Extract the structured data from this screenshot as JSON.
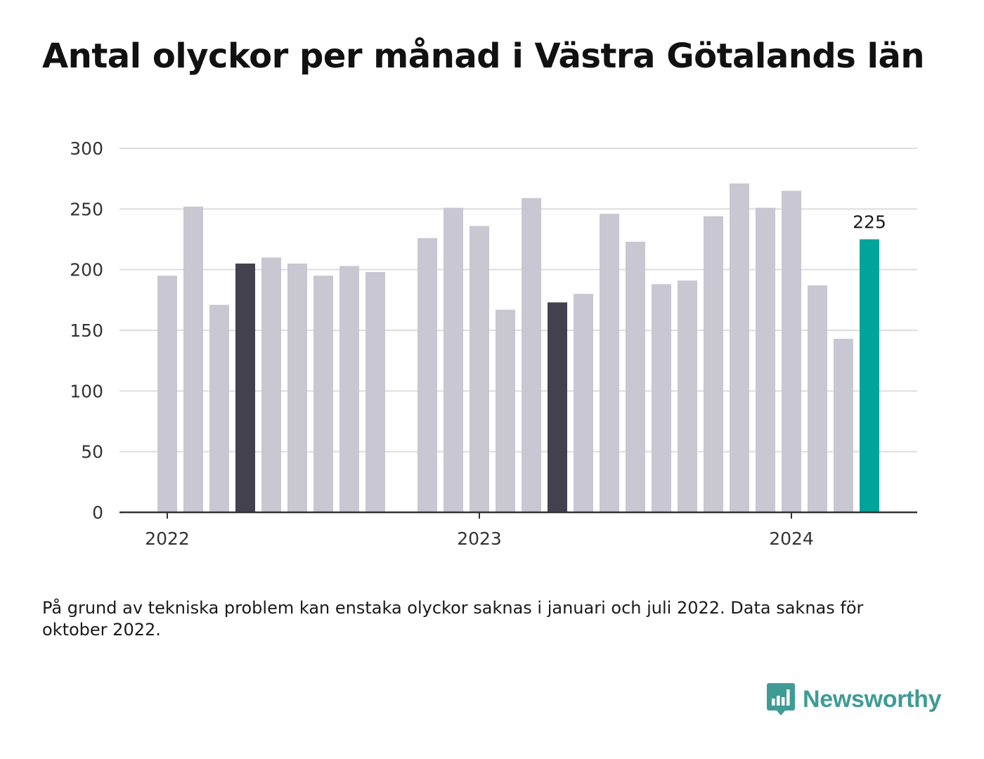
{
  "title": "Antal olyckor per månad i Västra Götalands län",
  "footnote": "På grund av tekniska problem kan enstaka olyckor saknas i januari och juli 2022. Data saknas för oktober 2022.",
  "brand": {
    "name": "Newsworthy",
    "icon": "newsworthy-logo-icon"
  },
  "colors": {
    "default_bar": "#c8c7d2",
    "highlight_bar": "#43414d",
    "latest_bar": "#00a49a",
    "gridline": "#dddddd",
    "axis": "#333333",
    "brand": "#3f9b96"
  },
  "chart_data": {
    "type": "bar",
    "title": "Antal olyckor per månad i Västra Götalands län",
    "xlabel": "",
    "ylabel": "",
    "ylim": [
      0,
      300
    ],
    "yticks": [
      0,
      50,
      100,
      150,
      200,
      250,
      300
    ],
    "xtick_labels": [
      {
        "label": "2022",
        "category": "2022-01"
      },
      {
        "label": "2023",
        "category": "2023-01"
      },
      {
        "label": "2024",
        "category": "2024-01"
      }
    ],
    "grid": true,
    "legend": "none",
    "categories": [
      "2022-01",
      "2022-02",
      "2022-03",
      "2022-04",
      "2022-05",
      "2022-06",
      "2022-07",
      "2022-08",
      "2022-09",
      "2022-10",
      "2022-11",
      "2022-12",
      "2023-01",
      "2023-02",
      "2023-03",
      "2023-04",
      "2023-05",
      "2023-06",
      "2023-07",
      "2023-08",
      "2023-09",
      "2023-10",
      "2023-11",
      "2023-12",
      "2024-01",
      "2024-02",
      "2024-03",
      "2024-04"
    ],
    "values": [
      195,
      252,
      171,
      205,
      210,
      205,
      195,
      203,
      198,
      null,
      226,
      251,
      236,
      167,
      259,
      173,
      180,
      246,
      223,
      188,
      191,
      244,
      271,
      251,
      265,
      187,
      143,
      225
    ],
    "highlight_categories": [
      "2022-04",
      "2023-04"
    ],
    "latest_category": "2024-04",
    "data_labels": [
      {
        "category": "2024-04",
        "text": "225"
      }
    ]
  }
}
